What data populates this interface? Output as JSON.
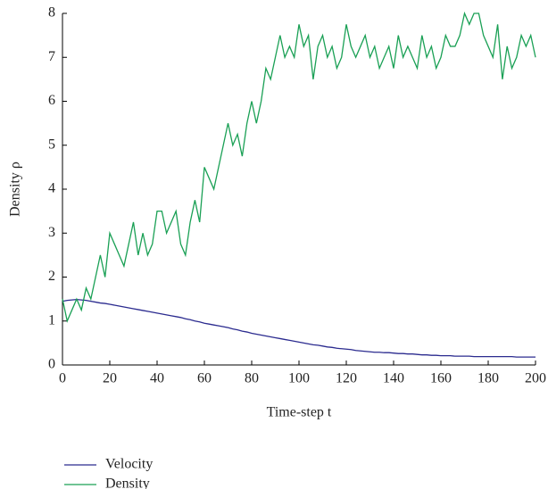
{
  "chart_data": {
    "type": "line",
    "x_label": "Time-step t",
    "y_label": "Density ρ",
    "xlim": [
      0,
      200
    ],
    "ylim": [
      0,
      8
    ],
    "xticks": [
      0,
      20,
      40,
      60,
      80,
      100,
      120,
      140,
      160,
      180,
      200
    ],
    "yticks": [
      0,
      1,
      2,
      3,
      4,
      5,
      6,
      7,
      8
    ],
    "x": [
      0,
      2,
      4,
      6,
      8,
      10,
      12,
      14,
      16,
      18,
      20,
      22,
      24,
      26,
      28,
      30,
      32,
      34,
      36,
      38,
      40,
      42,
      44,
      46,
      48,
      50,
      52,
      54,
      56,
      58,
      60,
      62,
      64,
      66,
      68,
      70,
      72,
      74,
      76,
      78,
      80,
      82,
      84,
      86,
      88,
      90,
      92,
      94,
      96,
      98,
      100,
      102,
      104,
      106,
      108,
      110,
      112,
      114,
      116,
      118,
      120,
      122,
      124,
      126,
      128,
      130,
      132,
      134,
      136,
      138,
      140,
      142,
      144,
      146,
      148,
      150,
      152,
      154,
      156,
      158,
      160,
      162,
      164,
      166,
      168,
      170,
      172,
      174,
      176,
      178,
      180,
      182,
      184,
      186,
      188,
      190,
      192,
      194,
      196,
      198,
      200
    ],
    "series": [
      {
        "name": "Velocity",
        "color": "#2b2b8f",
        "values": [
          1.45,
          1.47,
          1.48,
          1.49,
          1.48,
          1.47,
          1.45,
          1.43,
          1.41,
          1.4,
          1.38,
          1.36,
          1.34,
          1.32,
          1.3,
          1.28,
          1.26,
          1.24,
          1.22,
          1.2,
          1.18,
          1.16,
          1.14,
          1.12,
          1.1,
          1.08,
          1.05,
          1.03,
          1.0,
          0.98,
          0.95,
          0.93,
          0.91,
          0.89,
          0.87,
          0.85,
          0.82,
          0.8,
          0.77,
          0.75,
          0.72,
          0.7,
          0.68,
          0.66,
          0.64,
          0.62,
          0.6,
          0.58,
          0.56,
          0.54,
          0.52,
          0.5,
          0.48,
          0.46,
          0.45,
          0.43,
          0.41,
          0.4,
          0.38,
          0.37,
          0.36,
          0.35,
          0.33,
          0.32,
          0.31,
          0.3,
          0.29,
          0.29,
          0.28,
          0.28,
          0.27,
          0.26,
          0.26,
          0.25,
          0.25,
          0.24,
          0.23,
          0.23,
          0.22,
          0.22,
          0.21,
          0.21,
          0.21,
          0.2,
          0.2,
          0.2,
          0.2,
          0.19,
          0.19,
          0.19,
          0.19,
          0.19,
          0.19,
          0.19,
          0.19,
          0.19,
          0.18,
          0.18,
          0.18,
          0.18,
          0.18
        ]
      },
      {
        "name": "Density",
        "color": "#1aa055",
        "values": [
          1.5,
          1.0,
          1.25,
          1.5,
          1.25,
          1.75,
          1.5,
          2.0,
          2.5,
          2.0,
          3.0,
          2.75,
          2.5,
          2.25,
          2.75,
          3.25,
          2.5,
          3.0,
          2.5,
          2.75,
          3.5,
          3.5,
          3.0,
          3.25,
          3.5,
          2.75,
          2.5,
          3.25,
          3.75,
          3.25,
          4.5,
          4.25,
          4.0,
          4.5,
          5.0,
          5.5,
          5.0,
          5.25,
          4.75,
          5.5,
          6.0,
          5.5,
          6.0,
          6.75,
          6.5,
          7.0,
          7.5,
          7.0,
          7.25,
          7.0,
          7.75,
          7.25,
          7.5,
          6.5,
          7.25,
          7.5,
          7.0,
          7.25,
          6.75,
          7.0,
          7.75,
          7.25,
          7.0,
          7.25,
          7.5,
          7.0,
          7.25,
          6.75,
          7.0,
          7.25,
          6.75,
          7.5,
          7.0,
          7.25,
          7.0,
          6.75,
          7.5,
          7.0,
          7.25,
          6.75,
          7.0,
          7.5,
          7.25,
          7.25,
          7.5,
          8.0,
          7.75,
          8.0,
          8.0,
          7.5,
          7.25,
          7.0,
          7.75,
          6.5,
          7.25,
          6.75,
          7.0,
          7.5,
          7.25,
          7.5,
          7.0
        ]
      }
    ]
  }
}
